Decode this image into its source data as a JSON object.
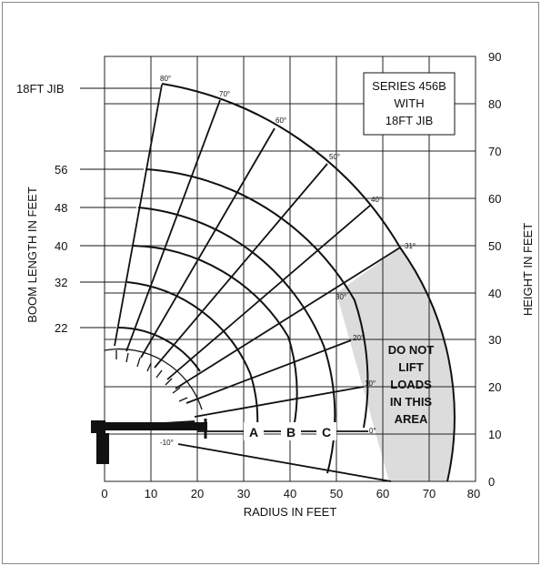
{
  "diagram": {
    "series_box": [
      "SERIES 456B",
      "WITH",
      "18FT JIB"
    ],
    "x_axis": {
      "label": "RADIUS IN FEET",
      "ticks": [
        "0",
        "10",
        "20",
        "30",
        "40",
        "50",
        "60",
        "70",
        "80"
      ]
    },
    "y_axis_right": {
      "label": "HEIGHT IN FEET",
      "ticks": [
        "0",
        "10",
        "20",
        "30",
        "40",
        "50",
        "60",
        "70",
        "80",
        "90"
      ]
    },
    "y_axis_left": {
      "label": "BOOM LENGTH IN FEET"
    },
    "boom_lengths": [
      "18FT JIB",
      "56",
      "48",
      "40",
      "32",
      "22"
    ],
    "angles": [
      "80°",
      "70°",
      "60°",
      "50°",
      "40°",
      "31°",
      "30°",
      "20°",
      "10°",
      "0°",
      "-10°"
    ],
    "zones": [
      "A",
      "B",
      "C"
    ],
    "warning": [
      "DO NOT",
      "LIFT",
      "LOADS",
      "IN THIS",
      "AREA"
    ],
    "colors": {
      "restricted_area": "#dcdcdc",
      "lines": "#111111",
      "grid": "#222222"
    }
  }
}
